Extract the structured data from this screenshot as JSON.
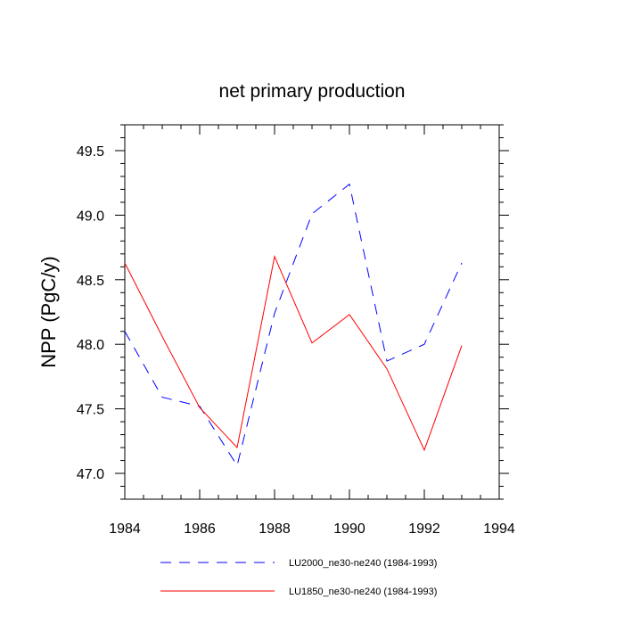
{
  "chart_data": {
    "type": "line",
    "title": "net primary production",
    "xlabel": "",
    "ylabel": "NPP  (PgC/y)",
    "xlim": [
      1984,
      1994
    ],
    "ylim": [
      46.8,
      49.7
    ],
    "x_ticks": [
      1984,
      1986,
      1988,
      1990,
      1992,
      1994
    ],
    "y_ticks": [
      47.0,
      47.5,
      48.0,
      48.5,
      49.0,
      49.5
    ],
    "x_tick_labels": [
      "1984",
      "1986",
      "1988",
      "1990",
      "1992",
      "1994"
    ],
    "y_tick_labels": [
      "47.0",
      "47.5",
      "48.0",
      "48.5",
      "49.0",
      "49.5"
    ],
    "x": [
      1984,
      1985,
      1986,
      1987,
      1988,
      1989,
      1990,
      1991,
      1992,
      1993
    ],
    "series": [
      {
        "name": "LU2000_ne30-ne240 (1984-1993)",
        "color": "#0000ff",
        "style": "dashed",
        "values": [
          48.1,
          47.59,
          47.52,
          47.06,
          48.24,
          49.01,
          49.24,
          47.87,
          48.0,
          48.63
        ]
      },
      {
        "name": "LU1850_ne30-ne240 (1984-1993)",
        "color": "#ff0000",
        "style": "solid",
        "values": [
          48.63,
          48.06,
          47.51,
          47.2,
          48.68,
          48.01,
          48.23,
          47.81,
          47.18,
          47.99
        ]
      }
    ],
    "legend_position": "bottom"
  }
}
